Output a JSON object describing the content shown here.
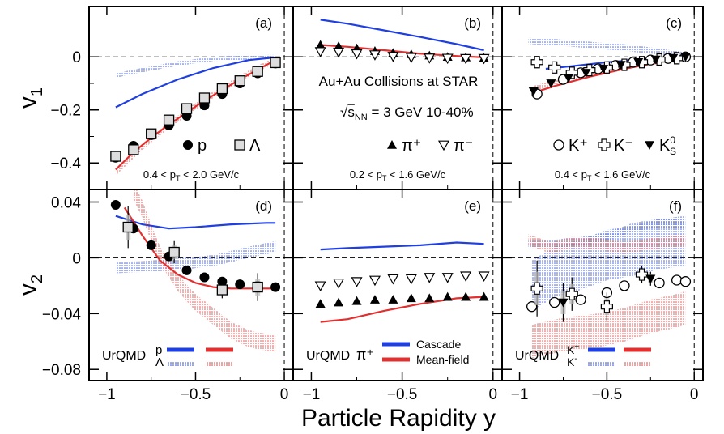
{
  "chart_data": {
    "type": "scatter",
    "xlabel": "Particle Rapidity y",
    "x_ticks": [
      "−1",
      "−0.5",
      "0"
    ],
    "xlim": [
      -1.1,
      0.05
    ],
    "v1_ylabel": "v",
    "v1_ylabel_sub": "1",
    "v2_ylabel": "v",
    "v2_ylabel_sub": "2",
    "v1_ylim": [
      -0.5,
      0.19
    ],
    "v2_ylim": [
      -0.088,
      0.049
    ],
    "v1_ticks": [
      "0",
      "−0.2",
      "−0.4"
    ],
    "v2_ticks": [
      "0.04",
      "0",
      "−0.04",
      "−0.08"
    ],
    "colors": {
      "cascade": "#1f3fe0",
      "meanfield": "#e23030"
    },
    "collision_text": "Au+Au Collisions at STAR",
    "energy_sqrt": "s",
    "energy_sub": "NN",
    "energy_rest": " = 3 GeV 10-40%",
    "urqmd_label": "UrQMD",
    "cascade_label": "Cascade",
    "meanfield_label": "Mean-field",
    "panels": [
      {
        "id": "a",
        "label": "(a)",
        "row": "v1",
        "col": 0,
        "pt_range": "0.4 < p",
        "pt_sub": "T",
        "pt_rest": " < 2.0 GeV/c",
        "legend": [
          {
            "marker": "filled-circle",
            "text": "p"
          },
          {
            "marker": "open-square",
            "text": "Λ"
          }
        ],
        "series": [
          {
            "name": "p",
            "marker": "filled-circle",
            "x": [
              -0.95,
              -0.85,
              -0.75,
              -0.65,
              -0.55,
              -0.45,
              -0.35,
              -0.25,
              -0.15,
              -0.05
            ],
            "y": [
              -0.38,
              -0.335,
              -0.295,
              -0.258,
              -0.222,
              -0.183,
              -0.14,
              -0.1,
              -0.062,
              -0.025
            ]
          },
          {
            "name": "Λ",
            "marker": "open-square",
            "x": [
              -0.95,
              -0.85,
              -0.75,
              -0.65,
              -0.55,
              -0.45,
              -0.35,
              -0.25,
              -0.15,
              -0.05
            ],
            "y": [
              -0.375,
              -0.35,
              -0.29,
              -0.238,
              -0.195,
              -0.155,
              -0.12,
              -0.09,
              -0.055,
              -0.022
            ]
          }
        ],
        "models": [
          {
            "name": "Cascade p",
            "style": "cascade-line",
            "x": [
              -0.95,
              -0.8,
              -0.6,
              -0.4,
              -0.2,
              -0.05
            ],
            "y": [
              -0.19,
              -0.14,
              -0.085,
              -0.042,
              -0.012,
              -0.002
            ]
          },
          {
            "name": "Cascade Λ",
            "style": "cascade-band",
            "x": [
              -0.95,
              -0.8,
              -0.6,
              -0.4,
              -0.2,
              -0.05
            ],
            "y": [
              -0.07,
              -0.05,
              -0.025,
              -0.008,
              -0.002,
              0.0
            ],
            "w": 0.008
          },
          {
            "name": "Mean-field p",
            "style": "meanfield-line",
            "x": [
              -0.95,
              -0.85,
              -0.75,
              -0.65,
              -0.55,
              -0.45,
              -0.35,
              -0.25,
              -0.15,
              -0.05
            ],
            "y": [
              -0.425,
              -0.36,
              -0.305,
              -0.255,
              -0.21,
              -0.165,
              -0.125,
              -0.085,
              -0.048,
              -0.012
            ]
          },
          {
            "name": "Mean-field Λ",
            "style": "meanfield-band",
            "x": [
              -0.95,
              -0.85,
              -0.75,
              -0.65,
              -0.55,
              -0.45,
              -0.35,
              -0.25,
              -0.15,
              -0.05
            ],
            "y": [
              -0.435,
              -0.37,
              -0.31,
              -0.258,
              -0.21,
              -0.163,
              -0.122,
              -0.082,
              -0.045,
              -0.01
            ],
            "w": 0.012
          }
        ]
      },
      {
        "id": "b",
        "label": "(b)",
        "row": "v1",
        "col": 1,
        "pt_range": "0.2 < p",
        "pt_sub": "T",
        "pt_rest": " < 1.6 GeV/c",
        "legend": [
          {
            "marker": "filled-triangle",
            "text": "π⁺"
          },
          {
            "marker": "open-triangle-down",
            "text": "π⁻"
          }
        ],
        "series": [
          {
            "name": "π⁺",
            "marker": "filled-triangle",
            "x": [
              -0.95,
              -0.85,
              -0.75,
              -0.65,
              -0.55,
              -0.45,
              -0.35,
              -0.25,
              -0.15,
              -0.05
            ],
            "y": [
              0.045,
              0.04,
              0.032,
              0.022,
              0.015,
              0.01,
              0.005,
              0.0,
              -0.002,
              -0.004
            ]
          },
          {
            "name": "π⁻",
            "marker": "open-triangle-down",
            "x": [
              -0.95,
              -0.85,
              -0.75,
              -0.65,
              -0.55,
              -0.45,
              -0.35,
              -0.25,
              -0.15,
              -0.05
            ],
            "y": [
              0.02,
              0.018,
              0.012,
              0.008,
              0.002,
              -0.002,
              -0.004,
              -0.005,
              -0.006,
              -0.006
            ]
          }
        ],
        "models": [
          {
            "name": "Cascade π⁺",
            "style": "cascade-line",
            "x": [
              -0.95,
              -0.8,
              -0.6,
              -0.4,
              -0.2,
              -0.05
            ],
            "y": [
              0.14,
              0.125,
              0.1,
              0.075,
              0.048,
              0.025
            ]
          },
          {
            "name": "Mean-field π⁺",
            "style": "meanfield-line",
            "x": [
              -0.95,
              -0.8,
              -0.6,
              -0.4,
              -0.2,
              -0.05
            ],
            "y": [
              0.045,
              0.038,
              0.025,
              0.012,
              0.003,
              -0.002
            ]
          }
        ]
      },
      {
        "id": "c",
        "label": "(c)",
        "row": "v1",
        "col": 2,
        "pt_range": "0.4 < p",
        "pt_sub": "T",
        "pt_rest": " < 1.6 GeV/c",
        "legend": [
          {
            "marker": "open-circle",
            "text": "K⁺"
          },
          {
            "marker": "open-cross",
            "text": "K⁻"
          },
          {
            "marker": "filled-triangle-down",
            "text": "K",
            "sub": "S",
            "sup": "0"
          }
        ],
        "series": [
          {
            "name": "K⁺",
            "marker": "open-circle",
            "x": [
              -0.9,
              -0.75,
              -0.65,
              -0.55,
              -0.45,
              -0.35,
              -0.25,
              -0.15,
              -0.05
            ],
            "y": [
              -0.14,
              -0.085,
              -0.06,
              -0.045,
              -0.032,
              -0.02,
              -0.012,
              -0.006,
              0.0
            ]
          },
          {
            "name": "K⁻",
            "marker": "open-cross",
            "x": [
              -0.9,
              -0.8,
              -0.7,
              -0.6,
              -0.5,
              -0.4,
              -0.3,
              -0.2,
              -0.1
            ],
            "y": [
              -0.02,
              -0.04,
              -0.06,
              -0.05,
              -0.04,
              -0.03,
              -0.02,
              -0.01,
              -0.005
            ]
          },
          {
            "name": "K⁰ₛ",
            "marker": "filled-triangle-down",
            "x": [
              -0.92,
              -0.82,
              -0.72,
              -0.62,
              -0.52,
              -0.42,
              -0.32,
              -0.22,
              -0.12,
              -0.05
            ],
            "y": [
              -0.13,
              -0.1,
              -0.08,
              -0.06,
              -0.045,
              -0.03,
              -0.02,
              -0.01,
              -0.004,
              0.0
            ]
          }
        ],
        "models": [
          {
            "name": "Cascade K⁺",
            "style": "cascade-line",
            "x": [
              -0.85,
              -0.7,
              -0.5,
              -0.3,
              -0.1
            ],
            "y": [
              -0.045,
              -0.035,
              -0.02,
              -0.01,
              -0.002
            ]
          },
          {
            "name": "Cascade K⁻",
            "style": "cascade-band",
            "x": [
              -0.95,
              -0.8,
              -0.6,
              -0.4,
              -0.2,
              -0.05
            ],
            "y": [
              0.06,
              0.055,
              0.045,
              0.035,
              0.02,
              0.005
            ],
            "w": 0.012
          },
          {
            "name": "Mean-field K⁺",
            "style": "meanfield-line",
            "x": [
              -0.92,
              -0.8,
              -0.6,
              -0.4,
              -0.2,
              -0.05
            ],
            "y": [
              -0.135,
              -0.11,
              -0.075,
              -0.045,
              -0.02,
              -0.005
            ]
          },
          {
            "name": "Mean-field K⁻",
            "style": "meanfield-band",
            "x": [
              -0.92,
              -0.8,
              -0.6,
              -0.4,
              -0.2,
              -0.05
            ],
            "y": [
              -0.12,
              -0.095,
              -0.065,
              -0.038,
              -0.016,
              -0.004
            ],
            "w": 0.01
          }
        ]
      },
      {
        "id": "d",
        "label": "(d)",
        "row": "v2",
        "col": 0,
        "series": [
          {
            "name": "p",
            "marker": "filled-circle",
            "x": [
              -0.95,
              -0.85,
              -0.75,
              -0.65,
              -0.55,
              -0.45,
              -0.35,
              -0.25,
              -0.15,
              -0.05
            ],
            "y": [
              0.038,
              0.021,
              0.009,
              0.001,
              -0.009,
              -0.014,
              -0.017,
              -0.019,
              -0.02,
              -0.021
            ]
          },
          {
            "name": "Λ",
            "marker": "open-square",
            "x": [
              -0.88,
              -0.62,
              -0.35,
              -0.15
            ],
            "y": [
              0.022,
              0.004,
              -0.023,
              -0.021
            ],
            "err": [
              0.015,
              0.008,
              0.006,
              0.01
            ]
          }
        ],
        "models": [
          {
            "name": "Cascade p",
            "style": "cascade-line",
            "x": [
              -0.95,
              -0.8,
              -0.65,
              -0.5,
              -0.3,
              -0.1,
              -0.05
            ],
            "y": [
              0.03,
              0.024,
              0.021,
              0.022,
              0.024,
              0.025,
              0.025
            ]
          },
          {
            "name": "Cascade Λ",
            "style": "cascade-band",
            "x": [
              -0.95,
              -0.75,
              -0.55,
              -0.4,
              -0.2,
              -0.05
            ],
            "y": [
              -0.007,
              -0.006,
              -0.004,
              -0.002,
              0.004,
              0.008
            ],
            "w": 0.004
          },
          {
            "name": "Mean-field p",
            "style": "meanfield-line",
            "x": [
              -0.9,
              -0.8,
              -0.7,
              -0.6,
              -0.5,
              -0.4,
              -0.3,
              -0.2,
              -0.05
            ],
            "y": [
              0.036,
              0.016,
              -0.002,
              -0.012,
              -0.018,
              -0.021,
              -0.022,
              -0.022,
              -0.022
            ]
          },
          {
            "name": "Mean-field Λ",
            "style": "meanfield-band",
            "x": [
              -0.85,
              -0.8,
              -0.75,
              -0.7,
              -0.6,
              -0.5,
              -0.4,
              -0.3,
              -0.2,
              -0.05
            ],
            "y": [
              0.048,
              0.035,
              0.018,
              0.002,
              -0.018,
              -0.032,
              -0.042,
              -0.052,
              -0.058,
              -0.062
            ],
            "w": 0.006
          }
        ]
      },
      {
        "id": "e",
        "label": "(e)",
        "row": "v2",
        "col": 1,
        "series": [
          {
            "name": "π⁺",
            "marker": "filled-triangle",
            "x": [
              -0.95,
              -0.85,
              -0.75,
              -0.65,
              -0.55,
              -0.45,
              -0.35,
              -0.25,
              -0.15,
              -0.05
            ],
            "y": [
              -0.033,
              -0.032,
              -0.031,
              -0.03,
              -0.03,
              -0.029,
              -0.029,
              -0.028,
              -0.028,
              -0.028
            ]
          },
          {
            "name": "π⁻",
            "marker": "open-triangle-down",
            "x": [
              -0.95,
              -0.85,
              -0.75,
              -0.65,
              -0.55,
              -0.45,
              -0.35,
              -0.25,
              -0.15,
              -0.05
            ],
            "y": [
              -0.02,
              -0.018,
              -0.017,
              -0.016,
              -0.015,
              -0.015,
              -0.014,
              -0.014,
              -0.013,
              -0.013
            ]
          }
        ],
        "models": [
          {
            "name": "Cascade π⁺",
            "style": "cascade-line",
            "x": [
              -0.95,
              -0.8,
              -0.6,
              -0.4,
              -0.2,
              -0.05
            ],
            "y": [
              0.006,
              0.007,
              0.008,
              0.009,
              0.011,
              0.01
            ]
          },
          {
            "name": "Mean-field π⁺",
            "style": "meanfield-line",
            "x": [
              -0.95,
              -0.8,
              -0.6,
              -0.4,
              -0.2,
              -0.05
            ],
            "y": [
              -0.046,
              -0.044,
              -0.038,
              -0.033,
              -0.029,
              -0.028
            ]
          }
        ]
      },
      {
        "id": "f",
        "label": "(f)",
        "row": "v2",
        "col": 2,
        "series": [
          {
            "name": "K⁺",
            "marker": "open-circle",
            "x": [
              -0.93,
              -0.8,
              -0.65,
              -0.5,
              -0.4,
              -0.2,
              -0.1,
              -0.05
            ],
            "y": [
              -0.035,
              -0.032,
              -0.03,
              -0.025,
              -0.02,
              -0.018,
              -0.016,
              -0.017
            ]
          },
          {
            "name": "K⁻",
            "marker": "open-cross",
            "x": [
              -0.9,
              -0.7,
              -0.5,
              -0.3
            ],
            "y": [
              -0.022,
              -0.026,
              -0.035,
              -0.012
            ],
            "err": [
              0.02,
              0.012,
              0.01,
              0.006
            ]
          },
          {
            "name": "K⁰ₛ",
            "marker": "filled-triangle-down",
            "x": [
              -0.75,
              -0.25
            ],
            "y": [
              -0.032,
              -0.015
            ],
            "err": [
              0.014,
              0.005
            ]
          }
        ],
        "models": [
          {
            "name": "Cascade K⁺",
            "style": "cascade-band",
            "x": [
              -0.95,
              -0.8,
              -0.65,
              -0.5,
              -0.35,
              -0.2,
              -0.05
            ],
            "y": [
              0.01,
              0.01,
              0.012,
              0.015,
              0.022,
              0.025,
              0.024
            ],
            "w": 0.003
          },
          {
            "name": "Cascade K⁻",
            "style": "cascade-band",
            "x": [
              -0.93,
              -0.8,
              -0.65,
              -0.5,
              -0.35,
              -0.2,
              -0.05
            ],
            "y": [
              -0.02,
              -0.01,
              -0.005,
              0.002,
              0.005,
              0.01,
              0.012
            ],
            "w": 0.018
          },
          {
            "name": "Mean-field K⁺",
            "style": "meanfield-band",
            "x": [
              -0.95,
              -0.82,
              -0.7,
              -0.55,
              -0.4,
              -0.25,
              -0.1,
              -0.05
            ],
            "y": [
              0.013,
              0.007,
              0.011,
              0.01,
              0.007,
              0.01,
              0.012,
              0.012
            ],
            "w": 0.004
          },
          {
            "name": "Mean-field K⁻",
            "style": "meanfield-band",
            "x": [
              -0.93,
              -0.75,
              -0.55,
              -0.4,
              -0.25,
              -0.1,
              -0.05
            ],
            "y": [
              -0.06,
              -0.055,
              -0.052,
              -0.048,
              -0.042,
              -0.038,
              -0.036
            ],
            "w": 0.012
          }
        ],
        "urqmd_key": [
          {
            "text": "K",
            "sup": "+"
          },
          {
            "text": "K",
            "sup": "-"
          }
        ]
      }
    ],
    "urqmd_key_d": [
      {
        "text": "p"
      },
      {
        "text": "Λ"
      }
    ],
    "urqmd_key_e": "π⁺"
  }
}
